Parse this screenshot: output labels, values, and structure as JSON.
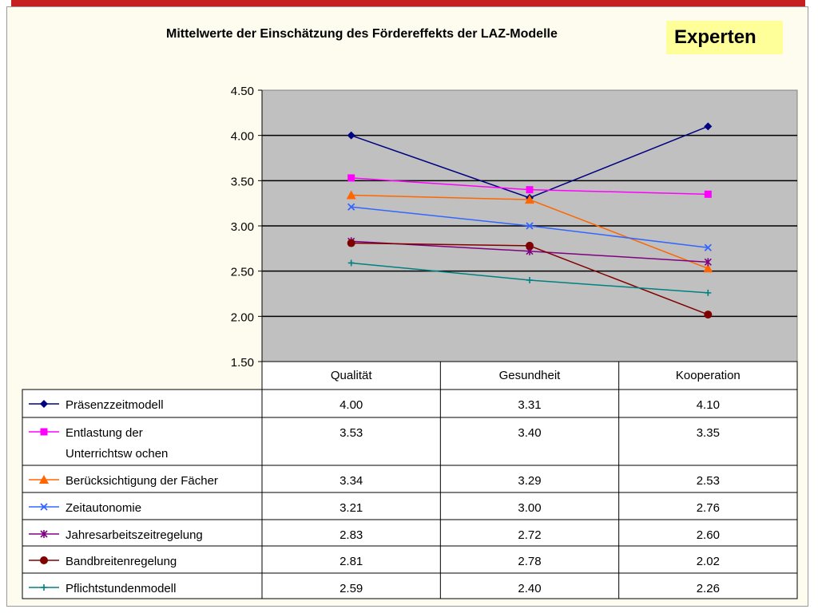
{
  "header": {
    "title": "Mittelwerte der Einschätzung des Fördereffekts der LAZ-Modelle",
    "tag": "Experten"
  },
  "chart_data": {
    "type": "line",
    "title": "Mittelwerte der Einschätzung des Fördereffekts der LAZ-Modelle",
    "categories": [
      "Qualität",
      "Gesundheit",
      "Kooperation"
    ],
    "ylim": [
      1.5,
      4.5
    ],
    "yticks": [
      "1.50",
      "2.00",
      "2.50",
      "3.00",
      "3.50",
      "4.00",
      "4.50"
    ],
    "grid": true,
    "legend": "data-table",
    "series": [
      {
        "name": "Präsenzzeitmodell",
        "values": [
          4.0,
          3.31,
          4.1
        ],
        "labels": [
          "4.00",
          "3.31",
          "4.10"
        ],
        "color": "#000080",
        "marker": "diamond"
      },
      {
        "name": "Entlastung der Unterrichtsw ochen",
        "values": [
          3.53,
          3.4,
          3.35
        ],
        "labels": [
          "3.53",
          "3.40",
          "3.35"
        ],
        "color": "#ff00ff",
        "marker": "square"
      },
      {
        "name": "Berücksichtigung der Fächer",
        "values": [
          3.34,
          3.29,
          2.53
        ],
        "labels": [
          "3.34",
          "3.29",
          "2.53"
        ],
        "color": "#ff6600",
        "marker": "triangle"
      },
      {
        "name": "Zeitautonomie",
        "values": [
          3.21,
          3.0,
          2.76
        ],
        "labels": [
          "3.21",
          "3.00",
          "2.76"
        ],
        "color": "#3366ff",
        "marker": "x"
      },
      {
        "name": "Jahresarbeitszeitregelung",
        "values": [
          2.83,
          2.72,
          2.6
        ],
        "labels": [
          "2.83",
          "2.72",
          "2.60"
        ],
        "color": "#800080",
        "marker": "star"
      },
      {
        "name": "Bandbreitenregelung",
        "values": [
          2.81,
          2.78,
          2.02
        ],
        "labels": [
          "2.81",
          "2.78",
          "2.02"
        ],
        "color": "#800000",
        "marker": "circle"
      },
      {
        "name": "Pflichtstundenmodell",
        "values": [
          2.59,
          2.4,
          2.26
        ],
        "labels": [
          "2.59",
          "2.40",
          "2.26"
        ],
        "color": "#008080",
        "marker": "plus"
      }
    ]
  }
}
